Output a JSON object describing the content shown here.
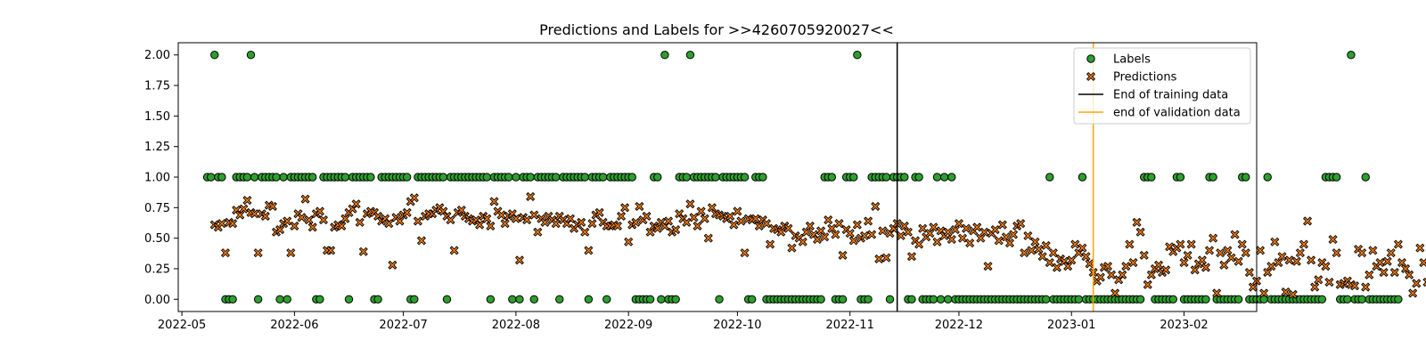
{
  "chart_data": {
    "type": "scatter",
    "title": "Predictions and Labels for >>4260705920027<<",
    "xlabel": "",
    "ylabel": "",
    "x_range": [
      "2022-04-30",
      "2023-02-21"
    ],
    "y_range": [
      -0.1,
      2.1
    ],
    "x_ticks": [
      "2022-05",
      "2022-06",
      "2022-07",
      "2022-08",
      "2022-09",
      "2022-10",
      "2022-11",
      "2022-12",
      "2023-01",
      "2023-02"
    ],
    "x_tick_dates": [
      "2022-05-01",
      "2022-06-01",
      "2022-07-01",
      "2022-08-01",
      "2022-09-01",
      "2022-10-01",
      "2022-11-01",
      "2022-12-01",
      "2023-01-01",
      "2023-02-01"
    ],
    "y_ticks": [
      "0.00",
      "0.25",
      "0.50",
      "0.75",
      "1.00",
      "1.25",
      "1.50",
      "1.75",
      "2.00"
    ],
    "y_tick_values": [
      0,
      0.25,
      0.5,
      0.75,
      1.0,
      1.25,
      1.5,
      1.75,
      2.0
    ],
    "legend": {
      "position": "upper right",
      "entries": [
        "Labels",
        "Predictions",
        "End of training data",
        "end of validation data"
      ]
    },
    "vertical_lines": [
      {
        "name": "End of training data",
        "date": "2022-11-14",
        "color": "#000000"
      },
      {
        "name": "end of validation data",
        "date": "2023-01-07",
        "color": "#ffa500"
      }
    ],
    "colors": {
      "labels_fill": "#2ca02c",
      "predictions_fill": "#ff7f0e",
      "edge": "#000000"
    },
    "labels_start": "2022-05-08",
    "labels_values": [
      1,
      1,
      2,
      1,
      1,
      0,
      0,
      0,
      1,
      1,
      1,
      1,
      2,
      1,
      0,
      1,
      1,
      1,
      1,
      1,
      0,
      1,
      0,
      1,
      1,
      1,
      1,
      1,
      1,
      1,
      0,
      0,
      1,
      1,
      1,
      1,
      1,
      1,
      1,
      0,
      1,
      1,
      1,
      1,
      1,
      1,
      0,
      0,
      1,
      1,
      1,
      1,
      1,
      1,
      1,
      1,
      0,
      0,
      1,
      1,
      1,
      1,
      1,
      1,
      1,
      1,
      0,
      1,
      1,
      1,
      1,
      1,
      1,
      1,
      1,
      1,
      1,
      1,
      0,
      1,
      1,
      1,
      1,
      1,
      0,
      1,
      0,
      1,
      1,
      1,
      0,
      1,
      1,
      1,
      1,
      1,
      1,
      0,
      1,
      1,
      1,
      1,
      1,
      1,
      1,
      0,
      1,
      1,
      1,
      1,
      0,
      1,
      1,
      1,
      1,
      1,
      1,
      1,
      0,
      0,
      0,
      0,
      0,
      1,
      1,
      0,
      2,
      0,
      0,
      0,
      1,
      1,
      1,
      2,
      1,
      1,
      1,
      1,
      1,
      1,
      1,
      0,
      1,
      1,
      1,
      1,
      1,
      1,
      1,
      0,
      0,
      1,
      1,
      1,
      0,
      0,
      0,
      0,
      0,
      0,
      0,
      0,
      0,
      0,
      0,
      0,
      0,
      0,
      0,
      0,
      1,
      1,
      1,
      0,
      0,
      0,
      1,
      1,
      1,
      2,
      0,
      0,
      0,
      1,
      1,
      1,
      1,
      1,
      0,
      1,
      1,
      1,
      1,
      0,
      0,
      1,
      1,
      0,
      0,
      0,
      0,
      1,
      0,
      1,
      0,
      1,
      0,
      0,
      0,
      0,
      0,
      0,
      0,
      0,
      0,
      0,
      0,
      0,
      0,
      0,
      0,
      0,
      0,
      0,
      0,
      0,
      0,
      0,
      0,
      0,
      0,
      0,
      1,
      0,
      0,
      0,
      0,
      0,
      0,
      0,
      0,
      1,
      0,
      0,
      0,
      0,
      0,
      0,
      0,
      0,
      0,
      0,
      0,
      0,
      0,
      0,
      0,
      0,
      1,
      1,
      1,
      0,
      0,
      0,
      0,
      0,
      0,
      1,
      1,
      0,
      0,
      0,
      0,
      0,
      0,
      0,
      1,
      1,
      0,
      0,
      0,
      0,
      0,
      0,
      0,
      1,
      1,
      0,
      0,
      0,
      0,
      0,
      1,
      0,
      0,
      0,
      0,
      0,
      0,
      0,
      0,
      0,
      0,
      0,
      0,
      0,
      0,
      0,
      1,
      1,
      1,
      1,
      0,
      0,
      0,
      2,
      0,
      0,
      0,
      1,
      0,
      0,
      0,
      0,
      0,
      0,
      0,
      0,
      0
    ],
    "predictions_start": "2022-05-10",
    "predictions_values": [
      0.61,
      0.59,
      0.62,
      0.38,
      0.63,
      0.62,
      0.73,
      0.69,
      0.74,
      0.81,
      0.71,
      0.7,
      0.38,
      0.7,
      0.68,
      0.77,
      0.76,
      0.55,
      0.57,
      0.62,
      0.64,
      0.38,
      0.6,
      0.7,
      0.67,
      0.82,
      0.65,
      0.59,
      0.7,
      0.72,
      0.65,
      0.4,
      0.4,
      0.59,
      0.61,
      0.6,
      0.66,
      0.71,
      0.74,
      0.78,
      0.63,
      0.39,
      0.7,
      0.72,
      0.71,
      0.68,
      0.64,
      0.66,
      0.62,
      0.28,
      0.67,
      0.64,
      0.69,
      0.71,
      0.8,
      0.83,
      0.64,
      0.48,
      0.68,
      0.7,
      0.7,
      0.73,
      0.75,
      0.72,
      0.68,
      0.65,
      0.4,
      0.71,
      0.73,
      0.68,
      0.66,
      0.64,
      0.65,
      0.61,
      0.68,
      0.66,
      0.6,
      0.8,
      0.72,
      0.69,
      0.62,
      0.68,
      0.7,
      0.66,
      0.32,
      0.67,
      0.65,
      0.84,
      0.69,
      0.55,
      0.66,
      0.63,
      0.68,
      0.65,
      0.62,
      0.68,
      0.65,
      0.62,
      0.66,
      0.58,
      0.61,
      0.63,
      0.55,
      0.4,
      0.62,
      0.69,
      0.71,
      0.63,
      0.6,
      0.6,
      0.61,
      0.6,
      0.68,
      0.75,
      0.47,
      0.61,
      0.63,
      0.76,
      0.65,
      0.68,
      0.55,
      0.6,
      0.58,
      0.63,
      0.6,
      0.64,
      0.55,
      0.57,
      0.7,
      0.66,
      0.63,
      0.78,
      0.67,
      0.6,
      0.72,
      0.66,
      0.5,
      0.75,
      0.7,
      0.69,
      0.68,
      0.66,
      0.68,
      0.61,
      0.72,
      0.64,
      0.38,
      0.66,
      0.65,
      0.66,
      0.6,
      0.65,
      0.62,
      0.45,
      0.58,
      0.57,
      0.55,
      0.6,
      0.58,
      0.42,
      0.52,
      0.5,
      0.47,
      0.55,
      0.6,
      0.53,
      0.49,
      0.56,
      0.51,
      0.65,
      0.58,
      0.53,
      0.62,
      0.36,
      0.57,
      0.54,
      0.48,
      0.61,
      0.5,
      0.52,
      0.64,
      0.53,
      0.76,
      0.33,
      0.56,
      0.34,
      0.54,
      0.58,
      0.62,
      0.52,
      0.6,
      0.55,
      0.35,
      0.48,
      0.45,
      0.58,
      0.51,
      0.54,
      0.59,
      0.47,
      0.56,
      0.52,
      0.55,
      0.49,
      0.57,
      0.62,
      0.5,
      0.58,
      0.46,
      0.56,
      0.59,
      0.5,
      0.55,
      0.27,
      0.54,
      0.57,
      0.48,
      0.61,
      0.51,
      0.46,
      0.53,
      0.6,
      0.62,
      0.38,
      0.52,
      0.4,
      0.47,
      0.41,
      0.35,
      0.44,
      0.3,
      0.38,
      0.26,
      0.33,
      0.31,
      0.27,
      0.32,
      0.45,
      0.38,
      0.42,
      0.35,
      0.29,
      0.22,
      0.15,
      0.18,
      0.26,
      0.27,
      0.2,
      0.05,
      0.16,
      0.2,
      0.27,
      0.45,
      0.3,
      0.63,
      0.55,
      0.36,
      0.12,
      0.2,
      0.25,
      0.28,
      0.22,
      0.24,
      0.43,
      0.39,
      0.42,
      0.45,
      0.3,
      0.36,
      0.45,
      0.24,
      0.29,
      0.32,
      0.26,
      0.4,
      0.5,
      0.05,
      0.38,
      0.28,
      0.4,
      0.34,
      0.53,
      0.31,
      0.45,
      0.38,
      0.22,
      0.1,
      0.15,
      0.4,
      0.05,
      0.22,
      0.27,
      0.47,
      0.3,
      0.35,
      0.06,
      0.32,
      0.04,
      0.31,
      0.38,
      0.45,
      0.64,
      0.32,
      0.1,
      0.16,
      0.3,
      0.27,
      0.14,
      0.49,
      0.38,
      0.12,
      0.13,
      0.15,
      0.12,
      0.11,
      0.41,
      0.38,
      0.1,
      0.2,
      0.4,
      0.27,
      0.3,
      0.22,
      0.31,
      0.38,
      0.22,
      0.45,
      0.3,
      0.25,
      0.2,
      0.05,
      0.13,
      0.42,
      0.3,
      0.14,
      0.36,
      0.45,
      0.2,
      0.05,
      0.49,
      0.3,
      0.2,
      0.46,
      0.4,
      0.28,
      0.36,
      0.52,
      0.21,
      0.1,
      0.48,
      0.3,
      0.25,
      0.64,
      0.32,
      0.2,
      0.4,
      0.65,
      0.16,
      0.15
    ]
  }
}
